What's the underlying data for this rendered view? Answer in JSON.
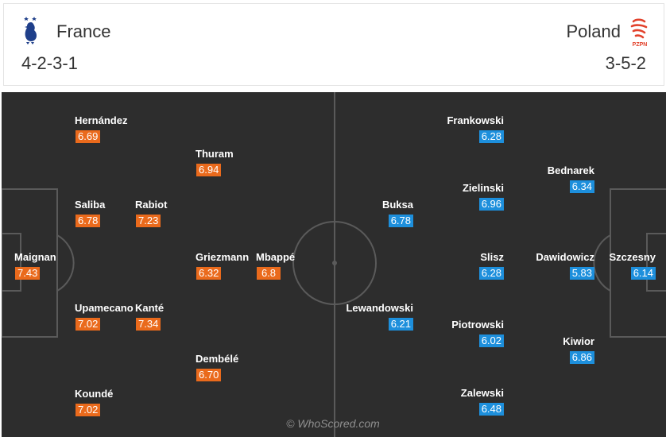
{
  "home": {
    "name": "France",
    "formation": "4-2-3-1",
    "crest_icon": "rooster-crest-icon",
    "rating_color": "#ea6a1c"
  },
  "away": {
    "name": "Poland",
    "formation": "3-5-2",
    "crest_icon": "pzpn-eagle-crest-icon",
    "crest_text": "PZPN",
    "rating_color": "#1d8fdc"
  },
  "players": {
    "home": [
      {
        "name": "Hernández",
        "rating": "6.69"
      },
      {
        "name": "Thuram",
        "rating": "6.94"
      },
      {
        "name": "Saliba",
        "rating": "6.78"
      },
      {
        "name": "Rabiot",
        "rating": "7.23"
      },
      {
        "name": "Maignan",
        "rating": "7.43"
      },
      {
        "name": "Griezmann",
        "rating": "6.32"
      },
      {
        "name": "Mbappé",
        "rating": "6.8"
      },
      {
        "name": "Upamecano",
        "rating": "7.02"
      },
      {
        "name": "Kanté",
        "rating": "7.34"
      },
      {
        "name": "Dembélé",
        "rating": "6.70"
      },
      {
        "name": "Koundé",
        "rating": "7.02"
      }
    ],
    "away": [
      {
        "name": "Frankowski",
        "rating": "6.28"
      },
      {
        "name": "Bednarek",
        "rating": "6.34"
      },
      {
        "name": "Zielinski",
        "rating": "6.96"
      },
      {
        "name": "Buksa",
        "rating": "6.78"
      },
      {
        "name": "Slisz",
        "rating": "6.28"
      },
      {
        "name": "Dawidowicz",
        "rating": "5.83"
      },
      {
        "name": "Szczesny",
        "rating": "6.14"
      },
      {
        "name": "Lewandowski",
        "rating": "6.21"
      },
      {
        "name": "Piotrowski",
        "rating": "6.02"
      },
      {
        "name": "Kiwior",
        "rating": "6.86"
      },
      {
        "name": "Zalewski",
        "rating": "6.48"
      }
    ]
  },
  "watermark": "© WhoScored.com"
}
